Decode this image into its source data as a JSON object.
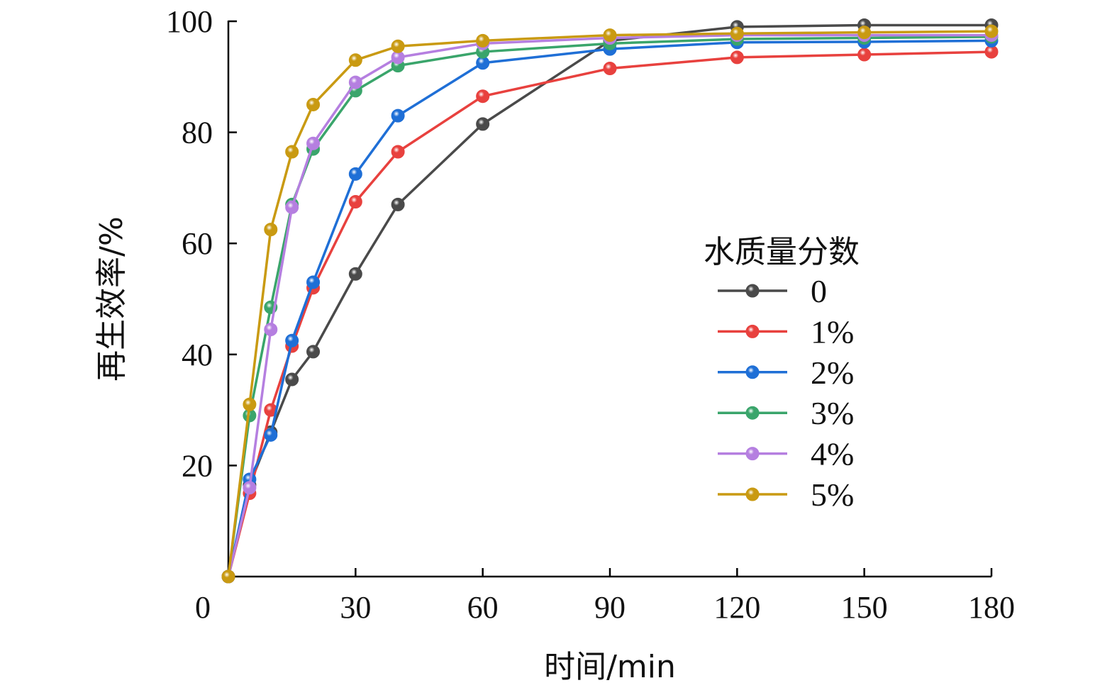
{
  "chart_data": {
    "type": "line",
    "xlabel": "时间/min",
    "ylabel": "再生效率/%",
    "xlim": [
      0,
      180
    ],
    "ylim": [
      0,
      100
    ],
    "x_ticks": [
      "0",
      "30",
      "60",
      "90",
      "120",
      "150",
      "180"
    ],
    "y_ticks": [
      "20",
      "40",
      "60",
      "80",
      "100"
    ],
    "grid": false,
    "legend": {
      "title": "水质量分数",
      "placement": "right"
    },
    "x": [
      0,
      5,
      10,
      15,
      20,
      30,
      40,
      60,
      90,
      120,
      150,
      180
    ],
    "series": [
      {
        "name": "0",
        "color": "#4a4a4a",
        "values": [
          0,
          16.5,
          26.0,
          35.5,
          40.5,
          54.5,
          67.0,
          81.5,
          96.5,
          99.0,
          99.3,
          99.3
        ]
      },
      {
        "name": "1%",
        "color": "#e8413e",
        "values": [
          0,
          15.0,
          30.0,
          41.5,
          52.0,
          67.5,
          76.5,
          86.5,
          91.5,
          93.5,
          94.0,
          94.5
        ]
      },
      {
        "name": "2%",
        "color": "#1f6fd6",
        "values": [
          0,
          17.5,
          25.5,
          42.5,
          53.0,
          72.5,
          83.0,
          92.5,
          95.0,
          96.2,
          96.3,
          96.5
        ]
      },
      {
        "name": "3%",
        "color": "#3aa56b",
        "values": [
          0,
          29.0,
          48.5,
          67.0,
          77.0,
          87.5,
          92.0,
          94.5,
          96.0,
          96.8,
          97.0,
          97.2
        ]
      },
      {
        "name": "4%",
        "color": "#b57fe0",
        "values": [
          0,
          16.0,
          44.5,
          66.5,
          78.0,
          89.0,
          93.5,
          96.0,
          97.0,
          97.5,
          97.5,
          97.5
        ]
      },
      {
        "name": "5%",
        "color": "#c99a12",
        "values": [
          0,
          31.0,
          62.5,
          76.5,
          85.0,
          93.0,
          95.5,
          96.5,
          97.5,
          97.8,
          98.0,
          98.2
        ]
      }
    ]
  }
}
